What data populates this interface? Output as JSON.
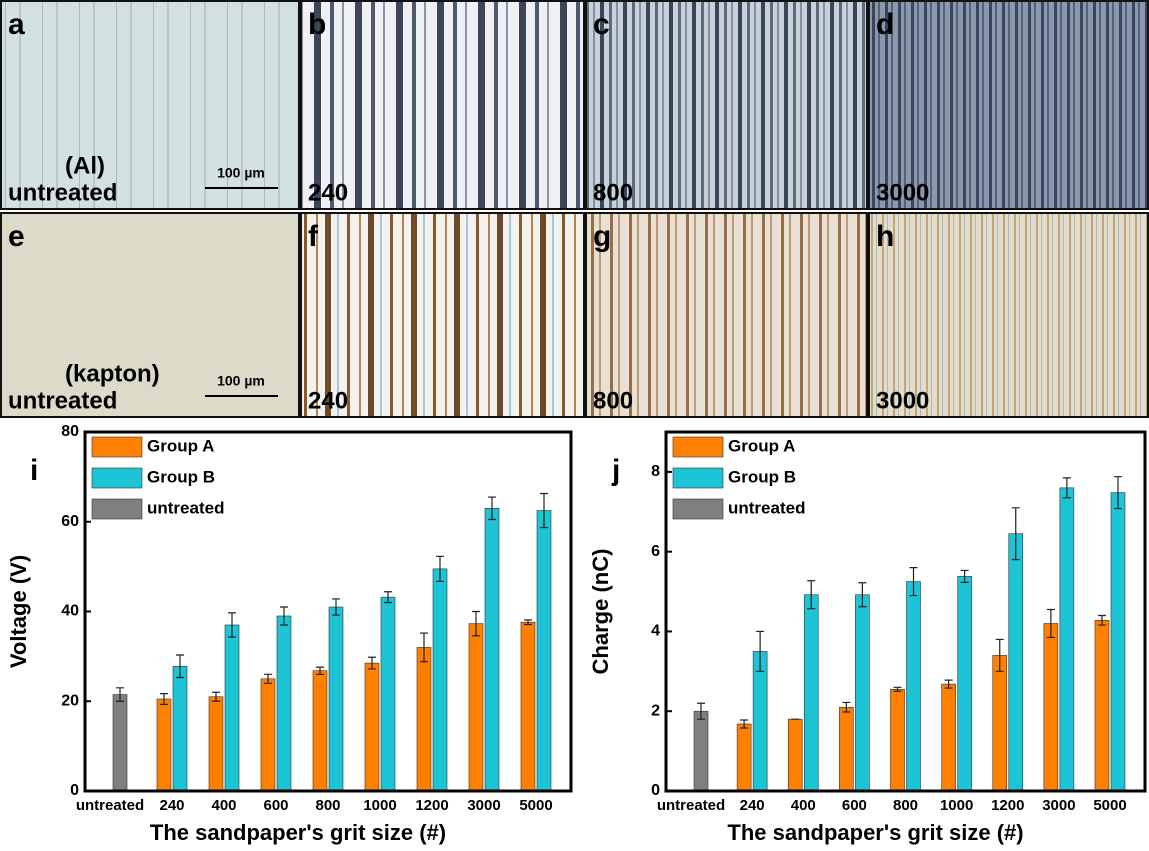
{
  "panels": [
    {
      "letter": "a",
      "lines": [
        "(Al)",
        "untreated"
      ],
      "scale_bar": "100 µm"
    },
    {
      "letter": "b",
      "lines": [
        "240"
      ]
    },
    {
      "letter": "c",
      "lines": [
        "800"
      ]
    },
    {
      "letter": "d",
      "lines": [
        "3000"
      ]
    },
    {
      "letter": "e",
      "lines": [
        "(kapton)",
        "untreated"
      ],
      "scale_bar": "100 µm"
    },
    {
      "letter": "f",
      "lines": [
        "240"
      ]
    },
    {
      "letter": "g",
      "lines": [
        "800"
      ]
    },
    {
      "letter": "h",
      "lines": [
        "3000"
      ]
    }
  ],
  "chart_data": [
    {
      "type": "bar",
      "panel": "i",
      "ylabel": "Voltage (V)",
      "xlabel": "The sandpaper's grit size (#)",
      "categories": [
        "untreated",
        "240",
        "400",
        "600",
        "800",
        "1000",
        "1200",
        "3000",
        "5000"
      ],
      "ylim": [
        0,
        80
      ],
      "yticks": [
        0,
        20,
        40,
        60,
        80
      ],
      "series": [
        {
          "name": "Group A",
          "color": "#ff8000",
          "values": [
            null,
            20.5,
            21,
            25,
            26.8,
            28.5,
            32,
            37.3,
            37.6
          ],
          "errors": [
            null,
            1.2,
            1,
            1,
            0.8,
            1.3,
            3.2,
            2.7,
            0.5
          ]
        },
        {
          "name": "Group B",
          "color": "#1cc4d6",
          "values": [
            null,
            27.8,
            37,
            39,
            41,
            43.2,
            49.5,
            63,
            62.5
          ],
          "errors": [
            null,
            2.5,
            2.7,
            2,
            1.8,
            1.2,
            2.8,
            2.5,
            3.8
          ]
        },
        {
          "name": "untreated",
          "color": "#7f7f7f",
          "values": [
            21.5,
            null,
            null,
            null,
            null,
            null,
            null,
            null,
            null
          ],
          "errors": [
            1.5,
            null,
            null,
            null,
            null,
            null,
            null,
            null,
            null
          ]
        }
      ]
    },
    {
      "type": "bar",
      "panel": "j",
      "ylabel": "Charge (nC)",
      "xlabel": "The sandpaper's grit size (#)",
      "categories": [
        "untreated",
        "240",
        "400",
        "600",
        "800",
        "1000",
        "1200",
        "3000",
        "5000"
      ],
      "ylim": [
        0,
        9
      ],
      "yticks": [
        0,
        2,
        4,
        6,
        8
      ],
      "series": [
        {
          "name": "Group A",
          "color": "#ff8000",
          "values": [
            null,
            1.68,
            1.8,
            2.1,
            2.55,
            2.68,
            3.4,
            4.2,
            4.28
          ],
          "errors": [
            null,
            0.1,
            0,
            0.12,
            0.05,
            0.1,
            0.4,
            0.35,
            0.12
          ]
        },
        {
          "name": "Group B",
          "color": "#1cc4d6",
          "values": [
            null,
            3.5,
            4.92,
            4.92,
            5.25,
            5.38,
            6.45,
            7.6,
            7.48
          ],
          "errors": [
            null,
            0.5,
            0.35,
            0.3,
            0.35,
            0.15,
            0.65,
            0.25,
            0.4
          ]
        },
        {
          "name": "untreated",
          "color": "#7f7f7f",
          "values": [
            2,
            null,
            null,
            null,
            null,
            null,
            null,
            null,
            null
          ],
          "errors": [
            0.2,
            null,
            null,
            null,
            null,
            null,
            null,
            null,
            null
          ]
        }
      ]
    }
  ]
}
